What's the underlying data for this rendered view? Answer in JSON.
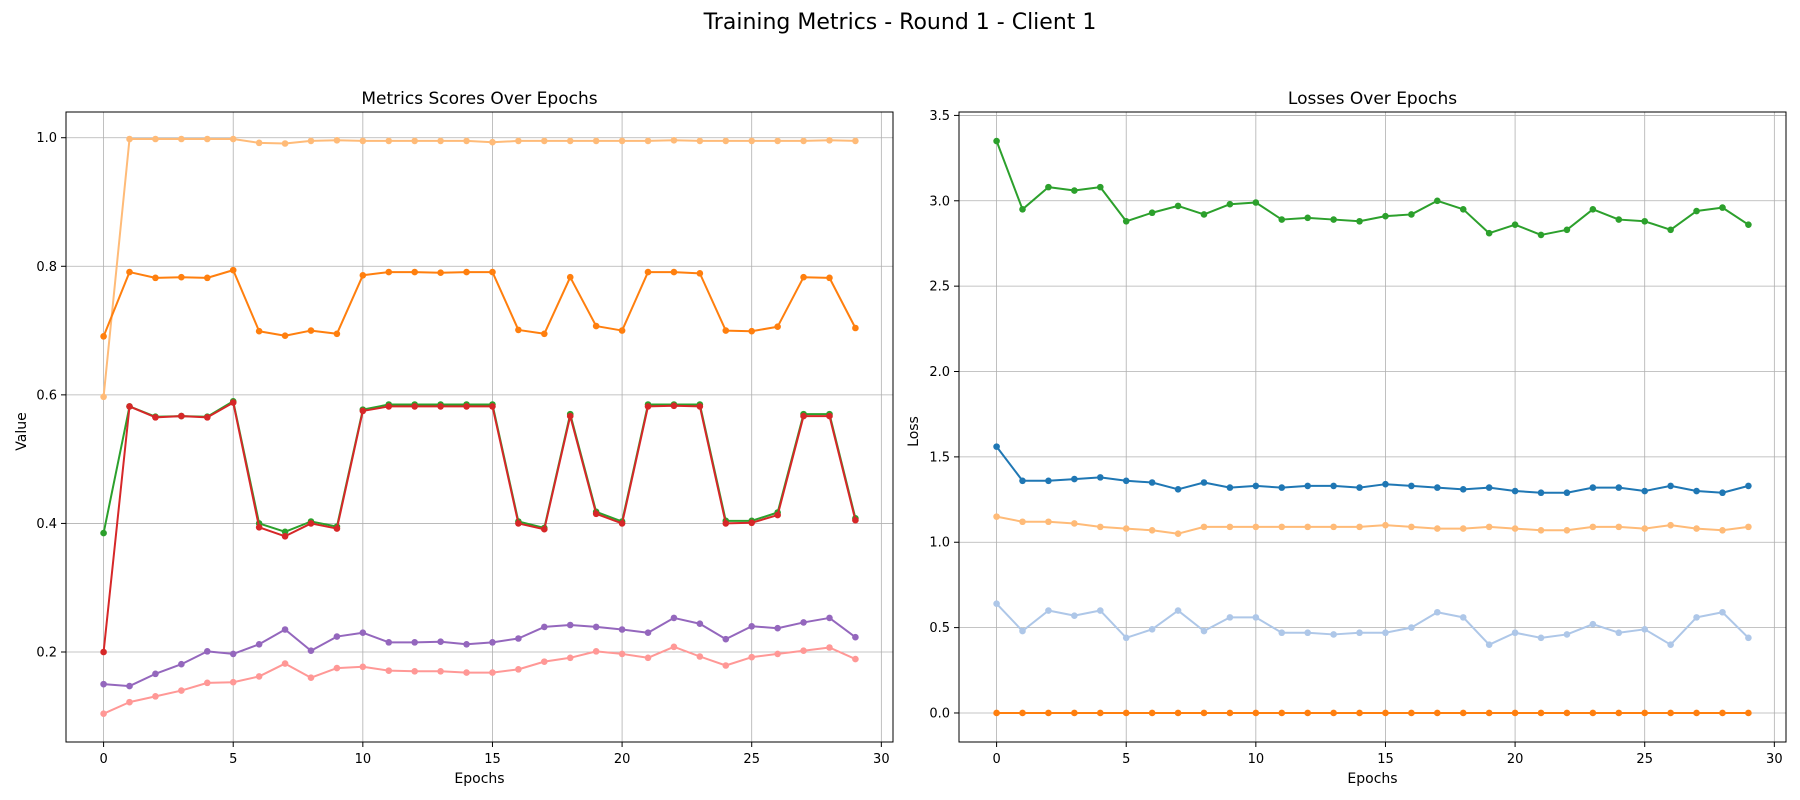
{
  "figure": {
    "suptitle": "Training Metrics - Round 1 - Client 1"
  },
  "chart_data": [
    {
      "type": "line",
      "title": "Metrics Scores Over Epochs",
      "xlabel": "Epochs",
      "ylabel": "Value",
      "xlim": [
        -1.45,
        30.45
      ],
      "ylim": [
        0.06,
        1.04
      ],
      "xticks": [
        0,
        5,
        10,
        15,
        20,
        25,
        30
      ],
      "yticks": [
        0.2,
        0.4,
        0.6,
        0.8,
        1.0
      ],
      "grid": true,
      "legend": "none",
      "x": [
        0,
        1,
        2,
        3,
        4,
        5,
        6,
        7,
        8,
        9,
        10,
        11,
        12,
        13,
        14,
        15,
        16,
        17,
        18,
        19,
        20,
        21,
        22,
        23,
        24,
        25,
        26,
        27,
        28,
        29
      ],
      "series": [
        {
          "color": "#ffbb78",
          "values": [
            0.597,
            0.998,
            0.998,
            0.998,
            0.998,
            0.998,
            0.992,
            0.991,
            0.995,
            0.996,
            0.995,
            0.995,
            0.995,
            0.995,
            0.995,
            0.993,
            0.995,
            0.995,
            0.995,
            0.995,
            0.995,
            0.995,
            0.996,
            0.995,
            0.995,
            0.995,
            0.995,
            0.995,
            0.996,
            0.995
          ]
        },
        {
          "color": "#ff7f0e",
          "values": [
            0.691,
            0.791,
            0.782,
            0.783,
            0.782,
            0.794,
            0.699,
            0.692,
            0.7,
            0.695,
            0.786,
            0.791,
            0.791,
            0.79,
            0.791,
            0.791,
            0.701,
            0.695,
            0.783,
            0.707,
            0.7,
            0.791,
            0.791,
            0.789,
            0.7,
            0.699,
            0.706,
            0.783,
            0.782,
            0.704
          ]
        },
        {
          "color": "#2ca02c",
          "values": [
            0.385,
            0.582,
            0.566,
            0.567,
            0.566,
            0.59,
            0.4,
            0.387,
            0.403,
            0.395,
            0.577,
            0.585,
            0.585,
            0.585,
            0.585,
            0.585,
            0.403,
            0.393,
            0.57,
            0.418,
            0.403,
            0.585,
            0.585,
            0.585,
            0.404,
            0.404,
            0.417,
            0.57,
            0.57,
            0.408
          ]
        },
        {
          "color": "#d62728",
          "values": [
            0.2,
            0.582,
            0.565,
            0.567,
            0.565,
            0.588,
            0.394,
            0.38,
            0.4,
            0.392,
            0.575,
            0.582,
            0.582,
            0.582,
            0.582,
            0.582,
            0.4,
            0.391,
            0.567,
            0.415,
            0.4,
            0.582,
            0.583,
            0.582,
            0.4,
            0.401,
            0.413,
            0.567,
            0.567,
            0.405
          ]
        },
        {
          "color": "#9467bd",
          "values": [
            0.15,
            0.147,
            0.166,
            0.181,
            0.201,
            0.197,
            0.212,
            0.235,
            0.202,
            0.224,
            0.23,
            0.215,
            0.215,
            0.216,
            0.212,
            0.215,
            0.221,
            0.239,
            0.242,
            0.239,
            0.235,
            0.23,
            0.253,
            0.244,
            0.22,
            0.24,
            0.237,
            0.246,
            0.253,
            0.223
          ]
        },
        {
          "color": "#ff9896",
          "values": [
            0.104,
            0.122,
            0.131,
            0.14,
            0.152,
            0.153,
            0.162,
            0.182,
            0.16,
            0.175,
            0.177,
            0.171,
            0.17,
            0.17,
            0.168,
            0.168,
            0.173,
            0.185,
            0.191,
            0.201,
            0.197,
            0.191,
            0.208,
            0.193,
            0.179,
            0.192,
            0.197,
            0.202,
            0.207,
            0.189
          ]
        }
      ]
    },
    {
      "type": "line",
      "title": "Losses Over Epochs",
      "xlabel": "Epochs",
      "ylabel": "Loss",
      "xlim": [
        -1.45,
        30.45
      ],
      "ylim": [
        -0.17,
        3.52
      ],
      "xticks": [
        0,
        5,
        10,
        15,
        20,
        25,
        30
      ],
      "yticks": [
        0.0,
        0.5,
        1.0,
        1.5,
        2.0,
        2.5,
        3.0,
        3.5
      ],
      "ytick_labels": [
        "0.0",
        "0.5",
        "1.0",
        "1.5",
        "2.0",
        "2.5",
        "3.0",
        "3.5"
      ],
      "grid": true,
      "legend": "none",
      "x": [
        0,
        1,
        2,
        3,
        4,
        5,
        6,
        7,
        8,
        9,
        10,
        11,
        12,
        13,
        14,
        15,
        16,
        17,
        18,
        19,
        20,
        21,
        22,
        23,
        24,
        25,
        26,
        27,
        28,
        29
      ],
      "series": [
        {
          "color": "#2ca02c",
          "values": [
            3.35,
            2.95,
            3.08,
            3.06,
            3.08,
            2.88,
            2.93,
            2.97,
            2.92,
            2.98,
            2.99,
            2.89,
            2.9,
            2.89,
            2.88,
            2.91,
            2.92,
            3.0,
            2.95,
            2.81,
            2.86,
            2.8,
            2.83,
            2.95,
            2.89,
            2.88,
            2.83,
            2.94,
            2.96,
            2.86
          ]
        },
        {
          "color": "#1f77b4",
          "values": [
            1.56,
            1.36,
            1.36,
            1.37,
            1.38,
            1.36,
            1.35,
            1.31,
            1.35,
            1.32,
            1.33,
            1.32,
            1.33,
            1.33,
            1.32,
            1.34,
            1.33,
            1.32,
            1.31,
            1.32,
            1.3,
            1.29,
            1.29,
            1.32,
            1.32,
            1.3,
            1.33,
            1.3,
            1.29,
            1.33
          ]
        },
        {
          "color": "#ffbb78",
          "values": [
            1.15,
            1.12,
            1.12,
            1.11,
            1.09,
            1.08,
            1.07,
            1.05,
            1.09,
            1.09,
            1.09,
            1.09,
            1.09,
            1.09,
            1.09,
            1.1,
            1.09,
            1.08,
            1.08,
            1.09,
            1.08,
            1.07,
            1.07,
            1.09,
            1.09,
            1.08,
            1.1,
            1.08,
            1.07,
            1.09
          ]
        },
        {
          "color": "#aec7e8",
          "values": [
            0.64,
            0.48,
            0.6,
            0.57,
            0.6,
            0.44,
            0.49,
            0.6,
            0.48,
            0.56,
            0.56,
            0.47,
            0.47,
            0.46,
            0.47,
            0.47,
            0.5,
            0.59,
            0.56,
            0.4,
            0.47,
            0.44,
            0.46,
            0.52,
            0.47,
            0.49,
            0.4,
            0.56,
            0.59,
            0.44
          ]
        },
        {
          "color": "#ff7f0e",
          "values": [
            0.0,
            0.0,
            0.0,
            0.0,
            0.0,
            0.0,
            0.0,
            0.0,
            0.0,
            0.0,
            0.0,
            0.0,
            0.0,
            0.0,
            0.0,
            0.0,
            0.0,
            0.0,
            0.0,
            0.0,
            0.0,
            0.0,
            0.0,
            0.0,
            0.0,
            0.0,
            0.0,
            0.0,
            0.0,
            0.0
          ]
        }
      ]
    }
  ]
}
